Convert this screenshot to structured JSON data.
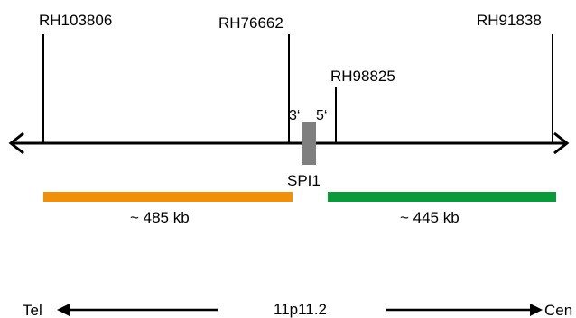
{
  "markers": [
    {
      "name": "RH103806"
    },
    {
      "name": "RH76662"
    },
    {
      "name": "RH98825"
    },
    {
      "name": "RH91838"
    }
  ],
  "gene": {
    "name": "SPI1",
    "end_left": "3‘",
    "end_right": "5‘",
    "color": "#7f7f7f"
  },
  "segments": [
    {
      "label": "~ 485 kb",
      "color": "#f0900a"
    },
    {
      "label": "~ 445 kb",
      "color": "#0a9a3c"
    }
  ],
  "orientation": {
    "left": "Tel",
    "center": "11p11.2",
    "right": "Cen"
  }
}
